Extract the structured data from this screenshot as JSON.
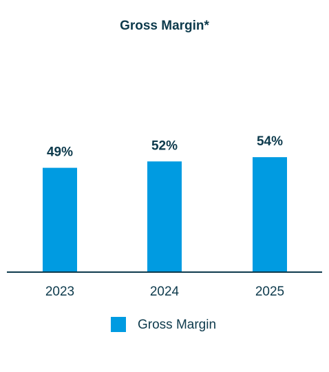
{
  "chart_data": {
    "type": "bar",
    "title": "Gross Margin*",
    "categories": [
      "2023",
      "2024",
      "2025"
    ],
    "series": [
      {
        "name": "Gross Margin",
        "color": "#009be1",
        "values": [
          49,
          52,
          54
        ],
        "value_labels": [
          "49%",
          "52%",
          "54%"
        ]
      }
    ],
    "ylim": [
      0,
      100
    ],
    "legend": "bottom"
  }
}
